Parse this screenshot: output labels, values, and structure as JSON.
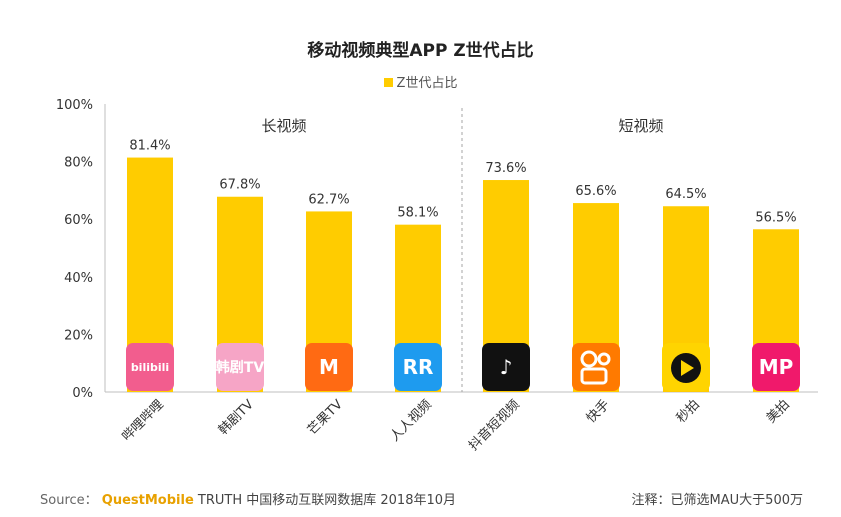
{
  "chart_data": {
    "type": "bar",
    "title": "移动视频典型APP Z世代占比",
    "legend": [
      "Z世代占比"
    ],
    "legend_position": "top-center",
    "ylim": [
      0,
      100
    ],
    "y_ticks": [
      "0%",
      "20%",
      "40%",
      "60%",
      "80%",
      "100%"
    ],
    "groups": [
      {
        "label": "长视频",
        "categories": [
          "哔哩哔哩",
          "韩剧TV",
          "芒果TV",
          "人人视频"
        ]
      },
      {
        "label": "短视频",
        "categories": [
          "抖音短视频",
          "快手",
          "秒拍",
          "美拍"
        ]
      }
    ],
    "categories": [
      "哔哩哔哩",
      "韩剧TV",
      "芒果TV",
      "人人视频",
      "抖音短视频",
      "快手",
      "秒拍",
      "美拍"
    ],
    "series": [
      {
        "name": "Z世代占比",
        "values": [
          81.4,
          67.8,
          62.7,
          58.1,
          73.6,
          65.6,
          64.5,
          56.5
        ]
      }
    ],
    "value_labels": [
      "81.4%",
      "67.8%",
      "62.7%",
      "58.1%",
      "73.6%",
      "65.6%",
      "64.5%",
      "56.5%"
    ],
    "bar_color": "#FFCC00",
    "app_icons": [
      {
        "name": "bilibili-icon",
        "bg": "#F25D8E",
        "text": "bilibili",
        "fg": "#ffffff"
      },
      {
        "name": "hanju-tv-icon",
        "bg": "#F6A5C6",
        "text": "韩剧TV",
        "fg": "#ffffff"
      },
      {
        "name": "mango-tv-icon",
        "bg": "#FF6A13",
        "text": "M",
        "fg": "#ffffff"
      },
      {
        "name": "renren-video-icon",
        "bg": "#1E9BEF",
        "text": "RR",
        "fg": "#ffffff"
      },
      {
        "name": "douyin-icon",
        "bg": "#111111",
        "text": "♪",
        "fg": "#ffffff"
      },
      {
        "name": "kuaishou-icon",
        "bg": "#FF7A00",
        "text": "",
        "fg": "#ffffff"
      },
      {
        "name": "miaopai-icon",
        "bg": "#FFD400",
        "text": "▶",
        "fg": "#111111"
      },
      {
        "name": "meipai-icon",
        "bg": "#F0196B",
        "text": "MP",
        "fg": "#ffffff"
      }
    ]
  },
  "footer": {
    "source_label": "Source：",
    "brand": "QuestMobile",
    "source_text": "TRUTH 中国移动互联网数据库 2018年10月",
    "note": "注释：已筛选MAU大于500万"
  }
}
